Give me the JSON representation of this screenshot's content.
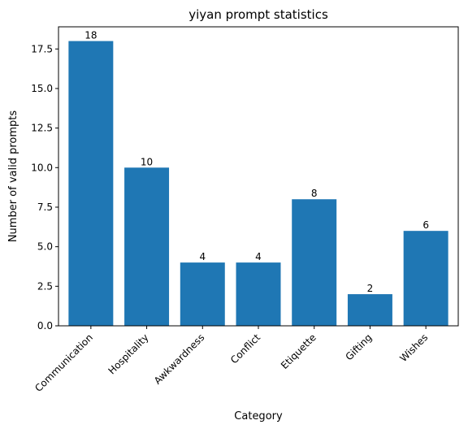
{
  "chart_data": {
    "type": "bar",
    "title": "yiyan prompt statistics",
    "xlabel": "Category",
    "ylabel": "Number of valid prompts",
    "categories": [
      "Communication",
      "Hospitality",
      "Awkwardness",
      "Conflict",
      "Etiquette",
      "Gifting",
      "Wishes"
    ],
    "values": [
      18,
      10,
      4,
      4,
      8,
      2,
      6
    ],
    "data_labels": [
      "18",
      "10",
      "4",
      "4",
      "8",
      "2",
      "6"
    ],
    "yticks": [
      0,
      2.5,
      5,
      7.5,
      10,
      12.5,
      15,
      17.5
    ],
    "ytick_labels": [
      "0.0",
      "2.5",
      "5.0",
      "7.5",
      "10.0",
      "12.5",
      "15.0",
      "17.5"
    ],
    "ylim": [
      0,
      18.9
    ],
    "grid": false,
    "bar_color": "#1f77b4"
  }
}
